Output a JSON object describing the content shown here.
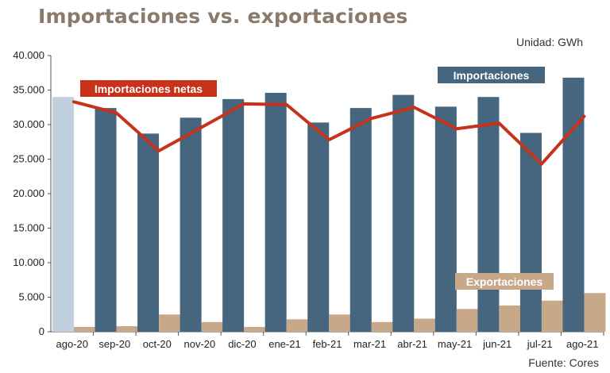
{
  "title": "Importaciones vs. exportaciones",
  "unit": "Unidad: GWh",
  "source": "Fuente: Cores",
  "colors": {
    "importaciones": "#45667e",
    "importaciones_first": "#c0d0de",
    "exportaciones": "#c7a98a",
    "netas": "#c8321a"
  },
  "chart_data": {
    "type": "bar",
    "categories": [
      "ago-20",
      "sep-20",
      "oct-20",
      "nov-20",
      "dic-20",
      "ene-21",
      "feb-21",
      "mar-21",
      "abr-21",
      "may-21",
      "jun-21",
      "jul-21",
      "ago-21"
    ],
    "ylim": [
      0,
      40000
    ],
    "yticks": [
      "0",
      "5.000",
      "10.000",
      "15.000",
      "20.000",
      "25.000",
      "30.000",
      "35.000",
      "40.000"
    ],
    "series": [
      {
        "name": "Importaciones",
        "type": "bar",
        "values": [
          34000,
          32400,
          28700,
          31000,
          33700,
          34600,
          30300,
          32400,
          34300,
          32600,
          34000,
          28800,
          36800
        ]
      },
      {
        "name": "Exportaciones",
        "type": "bar",
        "values": [
          700,
          800,
          2500,
          1400,
          700,
          1800,
          2500,
          1400,
          1900,
          3300,
          3800,
          4500,
          5600
        ]
      },
      {
        "name": "Importaciones netas",
        "type": "line",
        "values": [
          33300,
          31700,
          26200,
          29600,
          33000,
          32900,
          27800,
          30900,
          32500,
          29400,
          30200,
          24300,
          31200
        ]
      }
    ]
  }
}
